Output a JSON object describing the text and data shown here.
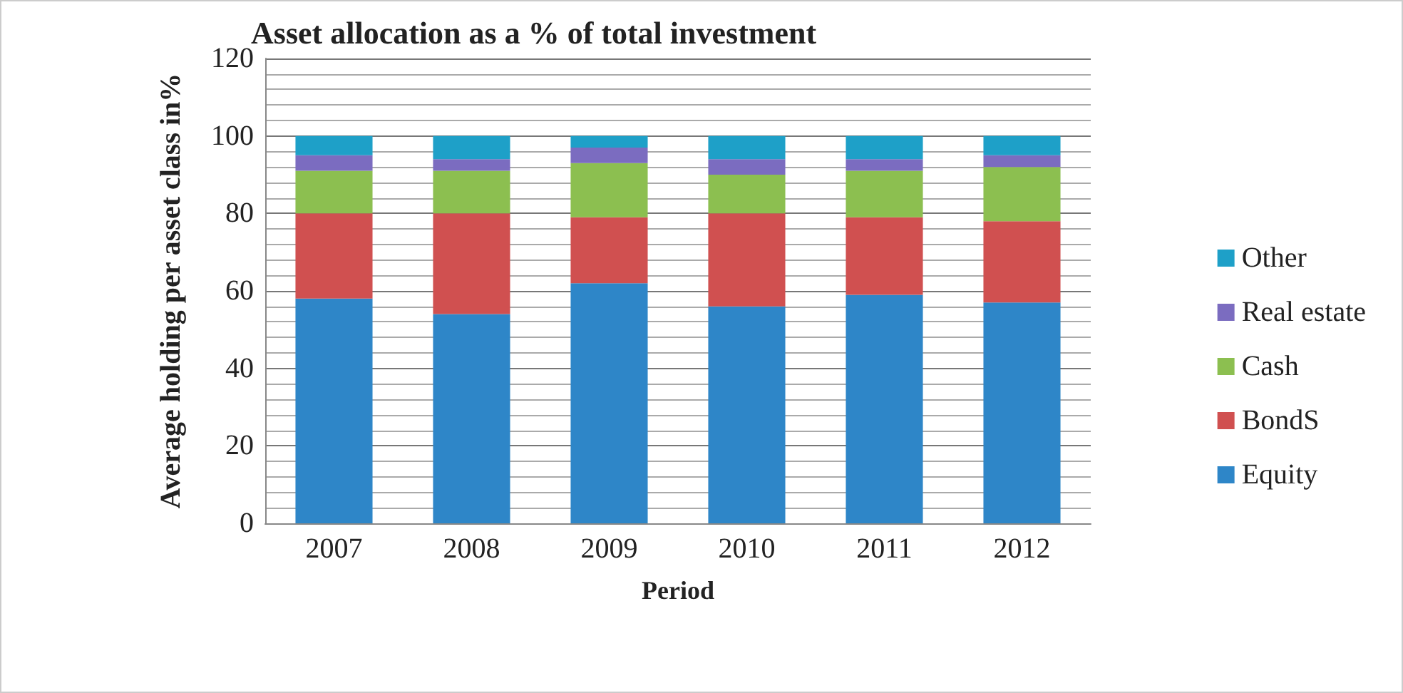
{
  "chart_data": {
    "type": "bar",
    "title": "Asset allocation as a % of total investment",
    "xlabel": "Period",
    "ylabel": "Average holding per asset class in%",
    "categories": [
      "2007",
      "2008",
      "2009",
      "2010",
      "2011",
      "2012"
    ],
    "stacked": true,
    "series": [
      {
        "name": "Equity",
        "color": "#2e86c8",
        "values": [
          58,
          54,
          62,
          56,
          59,
          57
        ]
      },
      {
        "name": "BondS",
        "color": "#d05050",
        "values": [
          22,
          26,
          17,
          24,
          20,
          21
        ]
      },
      {
        "name": "Cash",
        "color": "#8cbf50",
        "values": [
          11,
          11,
          14,
          10,
          12,
          14
        ]
      },
      {
        "name": "Real estate",
        "color": "#7b6cc0",
        "values": [
          4,
          3,
          4,
          4,
          3,
          3
        ]
      },
      {
        "name": "Other",
        "color": "#1ea0c8",
        "values": [
          5,
          6,
          3,
          6,
          6,
          5
        ]
      }
    ],
    "ylim": [
      0,
      120
    ],
    "yticks": [
      0,
      20,
      40,
      60,
      80,
      100,
      120
    ],
    "grid": "y",
    "legend": "right"
  }
}
